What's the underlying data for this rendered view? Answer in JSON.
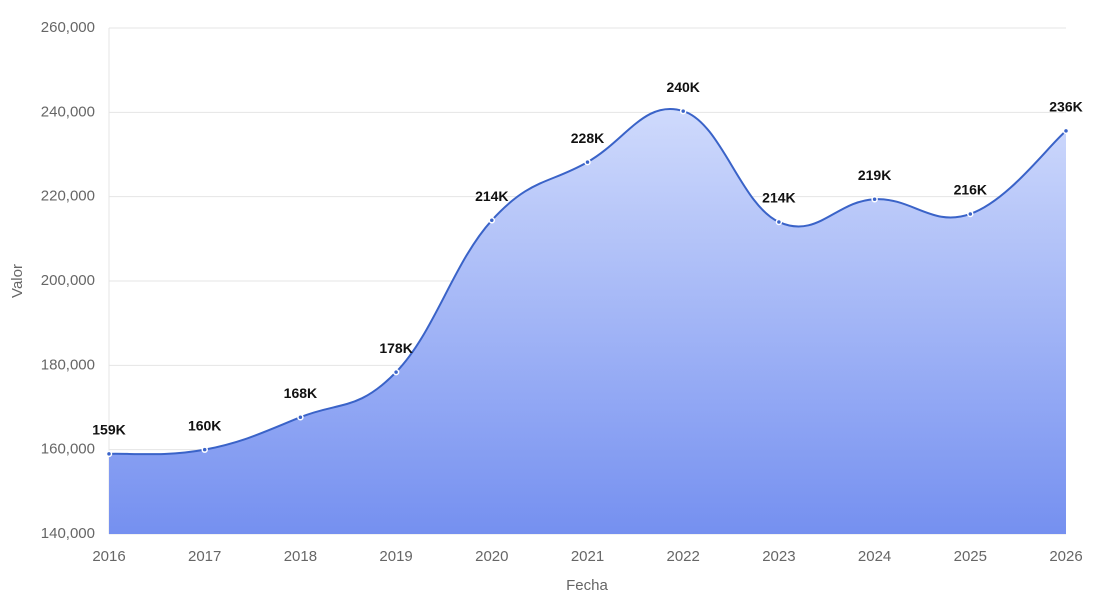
{
  "chart_data": {
    "type": "area",
    "x_label": "Fecha",
    "y_label": "Valor",
    "categories": [
      "2016",
      "2017",
      "2018",
      "2019",
      "2020",
      "2021",
      "2022",
      "2023",
      "2024",
      "2025",
      "2026"
    ],
    "values": [
      159000,
      160000,
      167700,
      178400,
      214400,
      228200,
      240300,
      214000,
      219400,
      215900,
      235600
    ],
    "value_labels": [
      "159K",
      "160K",
      "168K",
      "178K",
      "214K",
      "228K",
      "240K",
      "214K",
      "219K",
      "216K",
      "236K"
    ],
    "color": "#3a63c8",
    "ylim": [
      140000,
      260000
    ],
    "yticks": [
      {
        "value": 140000,
        "label": "140,000"
      },
      {
        "value": 160000,
        "label": "160,000"
      },
      {
        "value": 180000,
        "label": "180,000"
      },
      {
        "value": 200000,
        "label": "200,000"
      },
      {
        "value": 220000,
        "label": "220,000"
      },
      {
        "value": 240000,
        "label": "240,000"
      },
      {
        "value": 260000,
        "label": "260,000"
      }
    ],
    "grid": true
  }
}
